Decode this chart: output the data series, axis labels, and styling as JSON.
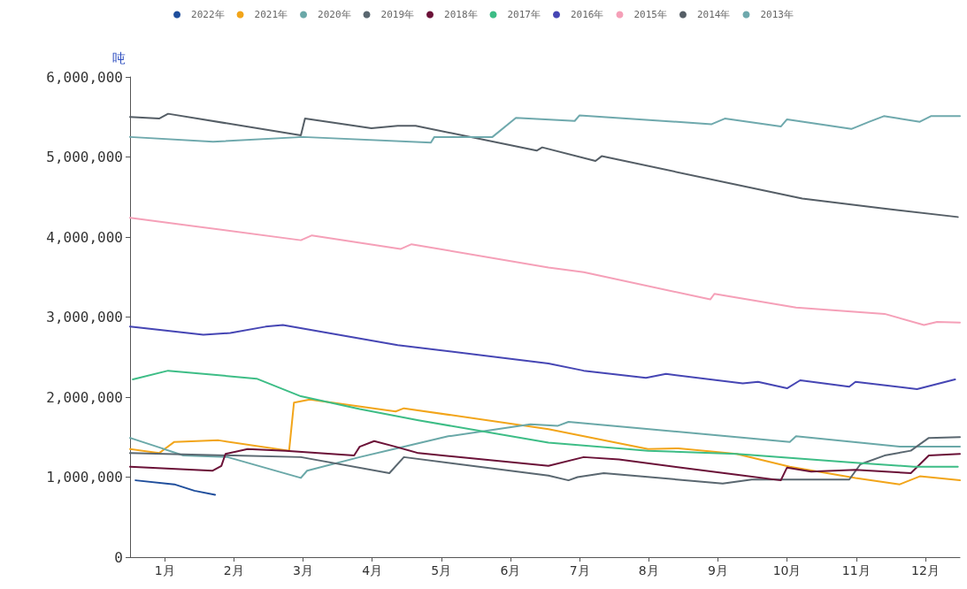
{
  "chart_data": {
    "type": "line",
    "ylabel": "吨",
    "legend": "top",
    "marker": "none",
    "grid": false,
    "line_style": "solid",
    "xlim": [
      0,
      12
    ],
    "xticks": [
      {
        "value": 0.5,
        "label": "1月"
      },
      {
        "value": 1.5,
        "label": "2月"
      },
      {
        "value": 2.5,
        "label": "3月"
      },
      {
        "value": 3.5,
        "label": "4月"
      },
      {
        "value": 4.5,
        "label": "5月"
      },
      {
        "value": 5.5,
        "label": "6月"
      },
      {
        "value": 6.5,
        "label": "7月"
      },
      {
        "value": 7.5,
        "label": "8月"
      },
      {
        "value": 8.5,
        "label": "9月"
      },
      {
        "value": 9.5,
        "label": "10月"
      },
      {
        "value": 10.5,
        "label": "11月"
      },
      {
        "value": 11.5,
        "label": "12月"
      }
    ],
    "ylim": [
      0,
      6000000
    ],
    "yticks": [
      0,
      {
        "value": 1000000,
        "label": "1,000,000"
      },
      {
        "value": 2000000,
        "label": "2,000,000"
      },
      {
        "value": 3000000,
        "label": "3,000,000"
      },
      {
        "value": 4000000,
        "label": "4,000,000"
      },
      {
        "value": 5000000,
        "label": "5,000,000"
      },
      {
        "value": 6000000,
        "label": "6,000,000"
      }
    ],
    "series": [
      {
        "name": "2022年",
        "color": "#1f4e9c",
        "x": [
          0.08,
          0.64,
          0.93,
          1.23
        ],
        "values": [
          960000,
          910000,
          830000,
          780000
        ]
      },
      {
        "name": "2021年",
        "color": "#f2a51a",
        "x": [
          0,
          0.42,
          0.64,
          1.28,
          2.3,
          2.37,
          2.6,
          3.84,
          3.96,
          6.05,
          7.49,
          7.93,
          8.77,
          9.54,
          10.49,
          11.13,
          11.42,
          12
        ],
        "values": [
          1350000,
          1300000,
          1440000,
          1460000,
          1330000,
          1930000,
          1970000,
          1820000,
          1860000,
          1600000,
          1350000,
          1360000,
          1290000,
          1130000,
          990000,
          910000,
          1010000,
          960000
        ]
      },
      {
        "name": "2020年",
        "color": "#6aa8a8",
        "x": [
          0,
          0.46,
          0.77,
          1.41,
          2.47,
          2.56,
          3.32,
          4.6,
          5.79,
          6.18,
          6.34,
          9.54,
          9.63,
          11.13,
          12
        ],
        "values": [
          1490000,
          1360000,
          1270000,
          1250000,
          990000,
          1080000,
          1250000,
          1510000,
          1660000,
          1640000,
          1690000,
          1440000,
          1510000,
          1380000,
          1380000
        ]
      },
      {
        "name": "2019年",
        "color": "#5a6770",
        "x": [
          0,
          2.47,
          3.75,
          3.96,
          6.05,
          6.34,
          6.47,
          6.85,
          8.57,
          8.99,
          10.4,
          10.56,
          10.91,
          11.29,
          11.55,
          12
        ],
        "values": [
          1300000,
          1250000,
          1050000,
          1250000,
          1020000,
          960000,
          1000000,
          1050000,
          920000,
          970000,
          970000,
          1160000,
          1270000,
          1330000,
          1490000,
          1500000
        ]
      },
      {
        "name": "2018年",
        "color": "#6b1238",
        "x": [
          0,
          1.19,
          1.32,
          1.38,
          1.7,
          2.25,
          3.24,
          3.32,
          3.53,
          3.84,
          4.17,
          6.05,
          6.56,
          7.07,
          8.77,
          9.41,
          9.5,
          9.85,
          10.49,
          11.29,
          11.55,
          12
        ],
        "values": [
          1130000,
          1080000,
          1140000,
          1290000,
          1350000,
          1330000,
          1270000,
          1380000,
          1450000,
          1380000,
          1300000,
          1140000,
          1250000,
          1220000,
          1030000,
          960000,
          1120000,
          1070000,
          1090000,
          1050000,
          1270000,
          1290000
        ]
      },
      {
        "name": "2017年",
        "color": "#3dbd86",
        "x": [
          0.04,
          0.55,
          1.83,
          2.47,
          3.32,
          4.17,
          6.05,
          7.49,
          8.77,
          10.49,
          11.33,
          11.97
        ],
        "values": [
          2220000,
          2330000,
          2230000,
          2010000,
          1850000,
          1710000,
          1430000,
          1330000,
          1290000,
          1180000,
          1130000,
          1130000
        ]
      },
      {
        "name": "2016年",
        "color": "#4646b4",
        "x": [
          0,
          1.06,
          1.45,
          1.96,
          2.21,
          3.87,
          6.05,
          6.56,
          7.46,
          7.75,
          8.86,
          9.08,
          9.5,
          9.69,
          10.4,
          10.49,
          11.38,
          11.93
        ],
        "values": [
          2880000,
          2780000,
          2800000,
          2880000,
          2900000,
          2650000,
          2420000,
          2330000,
          2240000,
          2290000,
          2170000,
          2190000,
          2110000,
          2210000,
          2130000,
          2190000,
          2100000,
          2220000
        ]
      },
      {
        "name": "2015年",
        "color": "#f5a0b8",
        "x": [
          0,
          2.47,
          2.63,
          3.91,
          4.07,
          6.05,
          6.56,
          8.39,
          8.45,
          9.63,
          10.91,
          11.48,
          11.67,
          12
        ],
        "values": [
          4240000,
          3960000,
          4020000,
          3850000,
          3910000,
          3620000,
          3560000,
          3220000,
          3290000,
          3120000,
          3040000,
          2900000,
          2940000,
          2930000
        ]
      },
      {
        "name": "2014年",
        "color": "#555e66",
        "x": [
          0,
          0.42,
          0.55,
          2.47,
          2.53,
          3.49,
          3.87,
          4.13,
          5.88,
          5.96,
          6.73,
          6.82,
          9.72,
          10.87,
          11.97
        ],
        "values": [
          5500000,
          5480000,
          5540000,
          5270000,
          5480000,
          5360000,
          5390000,
          5390000,
          5080000,
          5120000,
          4950000,
          5010000,
          4480000,
          4360000,
          4250000
        ]
      },
      {
        "name": "2013年",
        "color": "#6fa9ad",
        "x": [
          0,
          1.2,
          2.5,
          4.35,
          4.4,
          5.24,
          5.58,
          6.43,
          6.5,
          8.41,
          8.6,
          9.41,
          9.5,
          10.43,
          10.69,
          10.9,
          11.42,
          11.58,
          12
        ],
        "values": [
          5250000,
          5190000,
          5250000,
          5180000,
          5250000,
          5250000,
          5490000,
          5450000,
          5520000,
          5410000,
          5480000,
          5380000,
          5470000,
          5350000,
          5440000,
          5510000,
          5440000,
          5510000,
          5510000
        ]
      }
    ]
  }
}
